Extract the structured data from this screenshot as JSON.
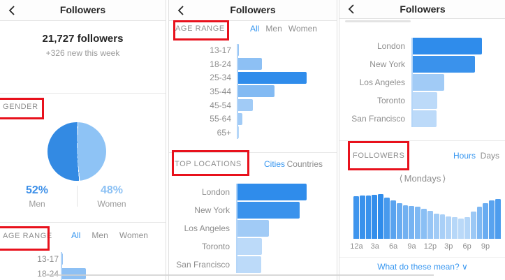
{
  "colors": {
    "accent_blue": "#3897f0",
    "bar_blue": "#2f8ceb",
    "pie_men_blue": "#338ae3",
    "pie_women_blue": "#8ec3f5",
    "men_pct_text": "#3c8fe8",
    "women_pct_text": "#8cc1f4",
    "annotation_red": "#e8111c",
    "text_dark": "#262626",
    "text_gray": "#8e8e8e"
  },
  "header": {
    "title": "Followers"
  },
  "overview": {
    "total_followers": "21,727 followers",
    "weekly_delta": "+326 new this week",
    "men_pct": "52%",
    "men_label": "Men",
    "women_pct": "48%",
    "women_label": "Women"
  },
  "chart_data": [
    {
      "id": "gender_pie",
      "type": "pie",
      "title": "GENDER",
      "slices": [
        {
          "label": "Men",
          "value": 52,
          "color": "#338ae3"
        },
        {
          "label": "Women",
          "value": 48,
          "color": "#8ec3f5"
        }
      ],
      "legend_position": "bottom"
    },
    {
      "id": "age_range",
      "type": "bar",
      "orientation": "horizontal",
      "title": "AGE RANGE",
      "tabs": [
        "All",
        "Men",
        "Women"
      ],
      "active_tab": "All",
      "categories": [
        "13-17",
        "18-24",
        "25-34",
        "35-44",
        "45-54",
        "55-64",
        "65+"
      ],
      "values": [
        1,
        35,
        100,
        53,
        21,
        6,
        1
      ],
      "value_unit": "percent of max bar",
      "opacities": [
        0.5,
        0.55,
        1,
        0.6,
        0.45,
        0.45,
        0.35
      ],
      "bar_color": "#2f8ceb"
    },
    {
      "id": "top_locations",
      "type": "bar",
      "orientation": "horizontal",
      "title": "TOP LOCATIONS",
      "tabs": [
        "Cities",
        "Countries"
      ],
      "active_tab": "Cities",
      "categories": [
        "London",
        "New York",
        "Los Angeles",
        "Toronto",
        "San Francisco"
      ],
      "values": [
        100,
        90,
        45,
        35,
        34
      ],
      "value_unit": "percent of max bar",
      "opacities": [
        1,
        0.95,
        0.45,
        0.32,
        0.32
      ],
      "bar_color": "#2f8ceb"
    },
    {
      "id": "followers_hours",
      "type": "bar",
      "orientation": "vertical",
      "title": "FOLLOWERS",
      "tabs": [
        "Hours",
        "Days"
      ],
      "active_tab": "Hours",
      "day_prev": "⟨",
      "day_label": "Mondays",
      "day_next": "⟩",
      "x": [
        "12a",
        "1a",
        "2a",
        "3a",
        "4a",
        "5a",
        "6a",
        "7a",
        "8a",
        "9a",
        "10a",
        "11a",
        "12p",
        "1p",
        "2p",
        "3p",
        "4p",
        "5p",
        "6p",
        "7p",
        "8p",
        "9p",
        "10p",
        "11p"
      ],
      "tick_labels": [
        "12a",
        "3a",
        "6a",
        "9a",
        "12p",
        "3p",
        "6p",
        "9p"
      ],
      "values": [
        95,
        97,
        97,
        99,
        100,
        92,
        86,
        79,
        75,
        74,
        72,
        67,
        62,
        57,
        54,
        50,
        48,
        46,
        49,
        61,
        72,
        79,
        86,
        89
      ],
      "value_unit": "percent of max bar",
      "opacities": [
        0.92,
        0.95,
        0.95,
        0.98,
        1,
        0.88,
        0.8,
        0.72,
        0.68,
        0.66,
        0.62,
        0.56,
        0.5,
        0.45,
        0.42,
        0.38,
        0.35,
        0.33,
        0.36,
        0.48,
        0.62,
        0.72,
        0.8,
        0.85
      ],
      "bar_color": "#2f8ceb",
      "footer_link": "What do these mean? ∨"
    }
  ]
}
